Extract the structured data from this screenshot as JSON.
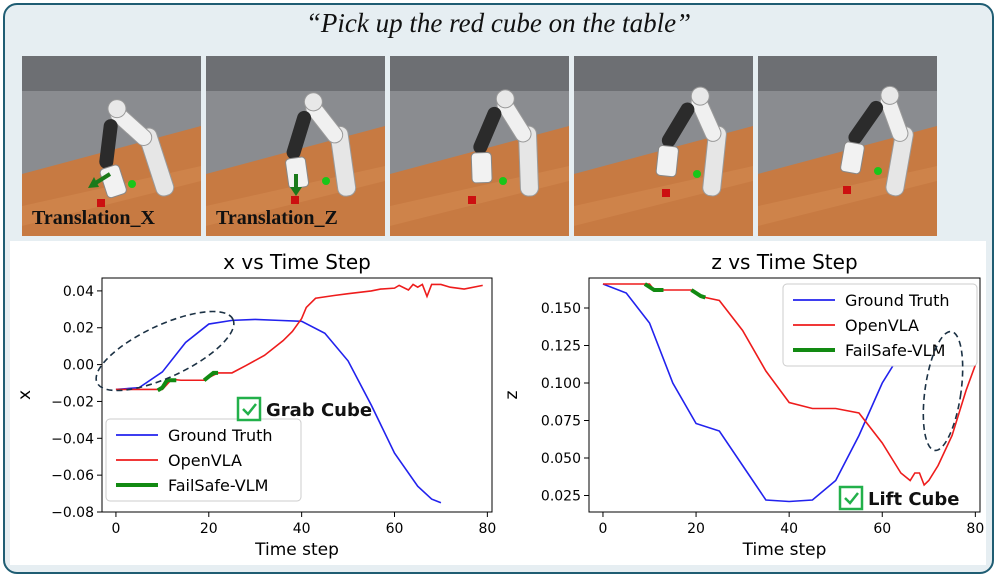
{
  "instruction": "“Pick up the red cube on the table”",
  "panels": [
    {
      "label": "Translation_X"
    },
    {
      "label": "Translation_Z"
    },
    {
      "label": ""
    },
    {
      "label": ""
    },
    {
      "label": ""
    }
  ],
  "colors": {
    "ground_truth": "#2222ee",
    "openvla": "#ee1c1c",
    "failsafe": "#128a12",
    "check": "#22b04a"
  },
  "chart_data": [
    {
      "type": "line",
      "title": "x vs Time Step",
      "xlabel": "Time step",
      "ylabel": "x",
      "xlim": [
        -3,
        81
      ],
      "ylim": [
        -0.08,
        0.047
      ],
      "xticks": [
        0,
        20,
        40,
        60,
        80
      ],
      "yticks": [
        -0.08,
        -0.06,
        -0.04,
        -0.02,
        0.0,
        0.02,
        0.04
      ],
      "ytick_labels": [
        "−0.08",
        "−0.06",
        "−0.04",
        "−0.02",
        "0.00",
        "0.02",
        "0.04"
      ],
      "grid": false,
      "legend_position": "lower-left",
      "annotation": "Grab Cube",
      "series": [
        {
          "name": "Ground Truth",
          "x": [
            0,
            5,
            10,
            15,
            20,
            25,
            30,
            35,
            40,
            45,
            50,
            55,
            60,
            65,
            68,
            70
          ],
          "y": [
            -0.0135,
            -0.0125,
            -0.004,
            0.012,
            0.022,
            0.024,
            0.0245,
            0.024,
            0.0235,
            0.017,
            0.002,
            -0.022,
            -0.048,
            -0.066,
            -0.073,
            -0.075
          ]
        },
        {
          "name": "OpenVLA",
          "x": [
            0,
            5,
            10,
            12,
            14,
            19,
            20,
            22,
            25,
            28,
            32,
            36,
            38,
            40,
            41,
            43,
            47,
            50,
            55,
            57,
            60,
            61,
            63,
            64,
            65,
            66,
            67,
            68,
            70,
            72,
            75,
            79
          ],
          "y": [
            -0.0135,
            -0.0135,
            -0.0135,
            -0.008,
            -0.0085,
            -0.0085,
            -0.007,
            -0.0045,
            -0.0045,
            -0.0005,
            0.005,
            0.013,
            0.018,
            0.025,
            0.031,
            0.036,
            0.0375,
            0.0385,
            0.04,
            0.041,
            0.0415,
            0.043,
            0.0405,
            0.0435,
            0.042,
            0.0435,
            0.037,
            0.0435,
            0.0435,
            0.042,
            0.041,
            0.043
          ]
        },
        {
          "name": "FailSafe-VLM",
          "segments": [
            {
              "x": [
                9,
                10,
                11,
                13
              ],
              "y": [
                -0.014,
                -0.0125,
                -0.0085,
                -0.0085
              ]
            },
            {
              "x": [
                19,
                20,
                21,
                22
              ],
              "y": [
                -0.0085,
                -0.0065,
                -0.0045,
                -0.0045
              ]
            }
          ]
        }
      ]
    },
    {
      "type": "line",
      "title": "z vs Time Step",
      "xlabel": "Time step",
      "ylabel": "z",
      "xlim": [
        -3,
        81
      ],
      "ylim": [
        0.014,
        0.17
      ],
      "xticks": [
        0,
        20,
        40,
        60,
        80
      ],
      "yticks": [
        0.025,
        0.05,
        0.075,
        0.1,
        0.125,
        0.15
      ],
      "ytick_labels": [
        "0.025",
        "0.050",
        "0.075",
        "0.100",
        "0.125",
        "0.150"
      ],
      "grid": false,
      "legend_position": "upper-right",
      "annotation": "Lift Cube",
      "series": [
        {
          "name": "Ground Truth",
          "x": [
            0,
            5,
            10,
            15,
            20,
            25,
            30,
            35,
            40,
            45,
            50,
            55,
            60,
            65,
            69
          ],
          "y": [
            0.166,
            0.16,
            0.14,
            0.1,
            0.073,
            0.068,
            0.045,
            0.022,
            0.021,
            0.022,
            0.035,
            0.065,
            0.1,
            0.125,
            0.13
          ]
        },
        {
          "name": "OpenVLA",
          "x": [
            0,
            5,
            10,
            11,
            15,
            19,
            20,
            22,
            25,
            30,
            35,
            40,
            45,
            50,
            55,
            60,
            62,
            64,
            66,
            67,
            68,
            69,
            70,
            72,
            75,
            78,
            80
          ],
          "y": [
            0.166,
            0.166,
            0.166,
            0.162,
            0.162,
            0.162,
            0.16,
            0.157,
            0.155,
            0.135,
            0.108,
            0.087,
            0.083,
            0.083,
            0.08,
            0.06,
            0.05,
            0.04,
            0.035,
            0.04,
            0.04,
            0.032,
            0.035,
            0.045,
            0.065,
            0.095,
            0.112
          ]
        },
        {
          "name": "FailSafe-VLM",
          "segments": [
            {
              "x": [
                9,
                10,
                11,
                13
              ],
              "y": [
                0.166,
                0.164,
                0.162,
                0.162
              ]
            },
            {
              "x": [
                19,
                20,
                21,
                22
              ],
              "y": [
                0.162,
                0.16,
                0.158,
                0.157
              ]
            }
          ]
        }
      ]
    }
  ]
}
